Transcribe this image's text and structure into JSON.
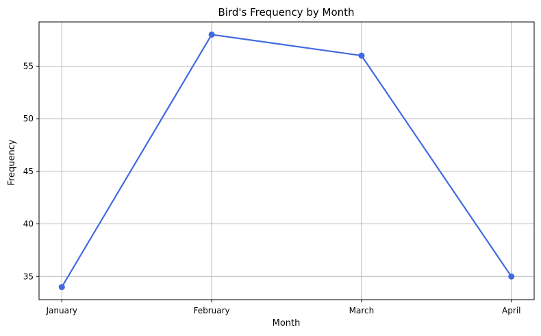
{
  "chart_data": {
    "type": "line",
    "title": "Bird's Frequency by Month",
    "xlabel": "Month",
    "ylabel": "Frequency",
    "categories": [
      "January",
      "February",
      "March",
      "April"
    ],
    "series": [
      {
        "values": [
          34,
          58,
          56,
          35
        ],
        "color": "#4169e1",
        "marker": "circle"
      }
    ],
    "ylim": [
      32.8,
      59.2
    ],
    "yticks": [
      35,
      40,
      45,
      50,
      55
    ],
    "grid": true,
    "legend": "none"
  }
}
